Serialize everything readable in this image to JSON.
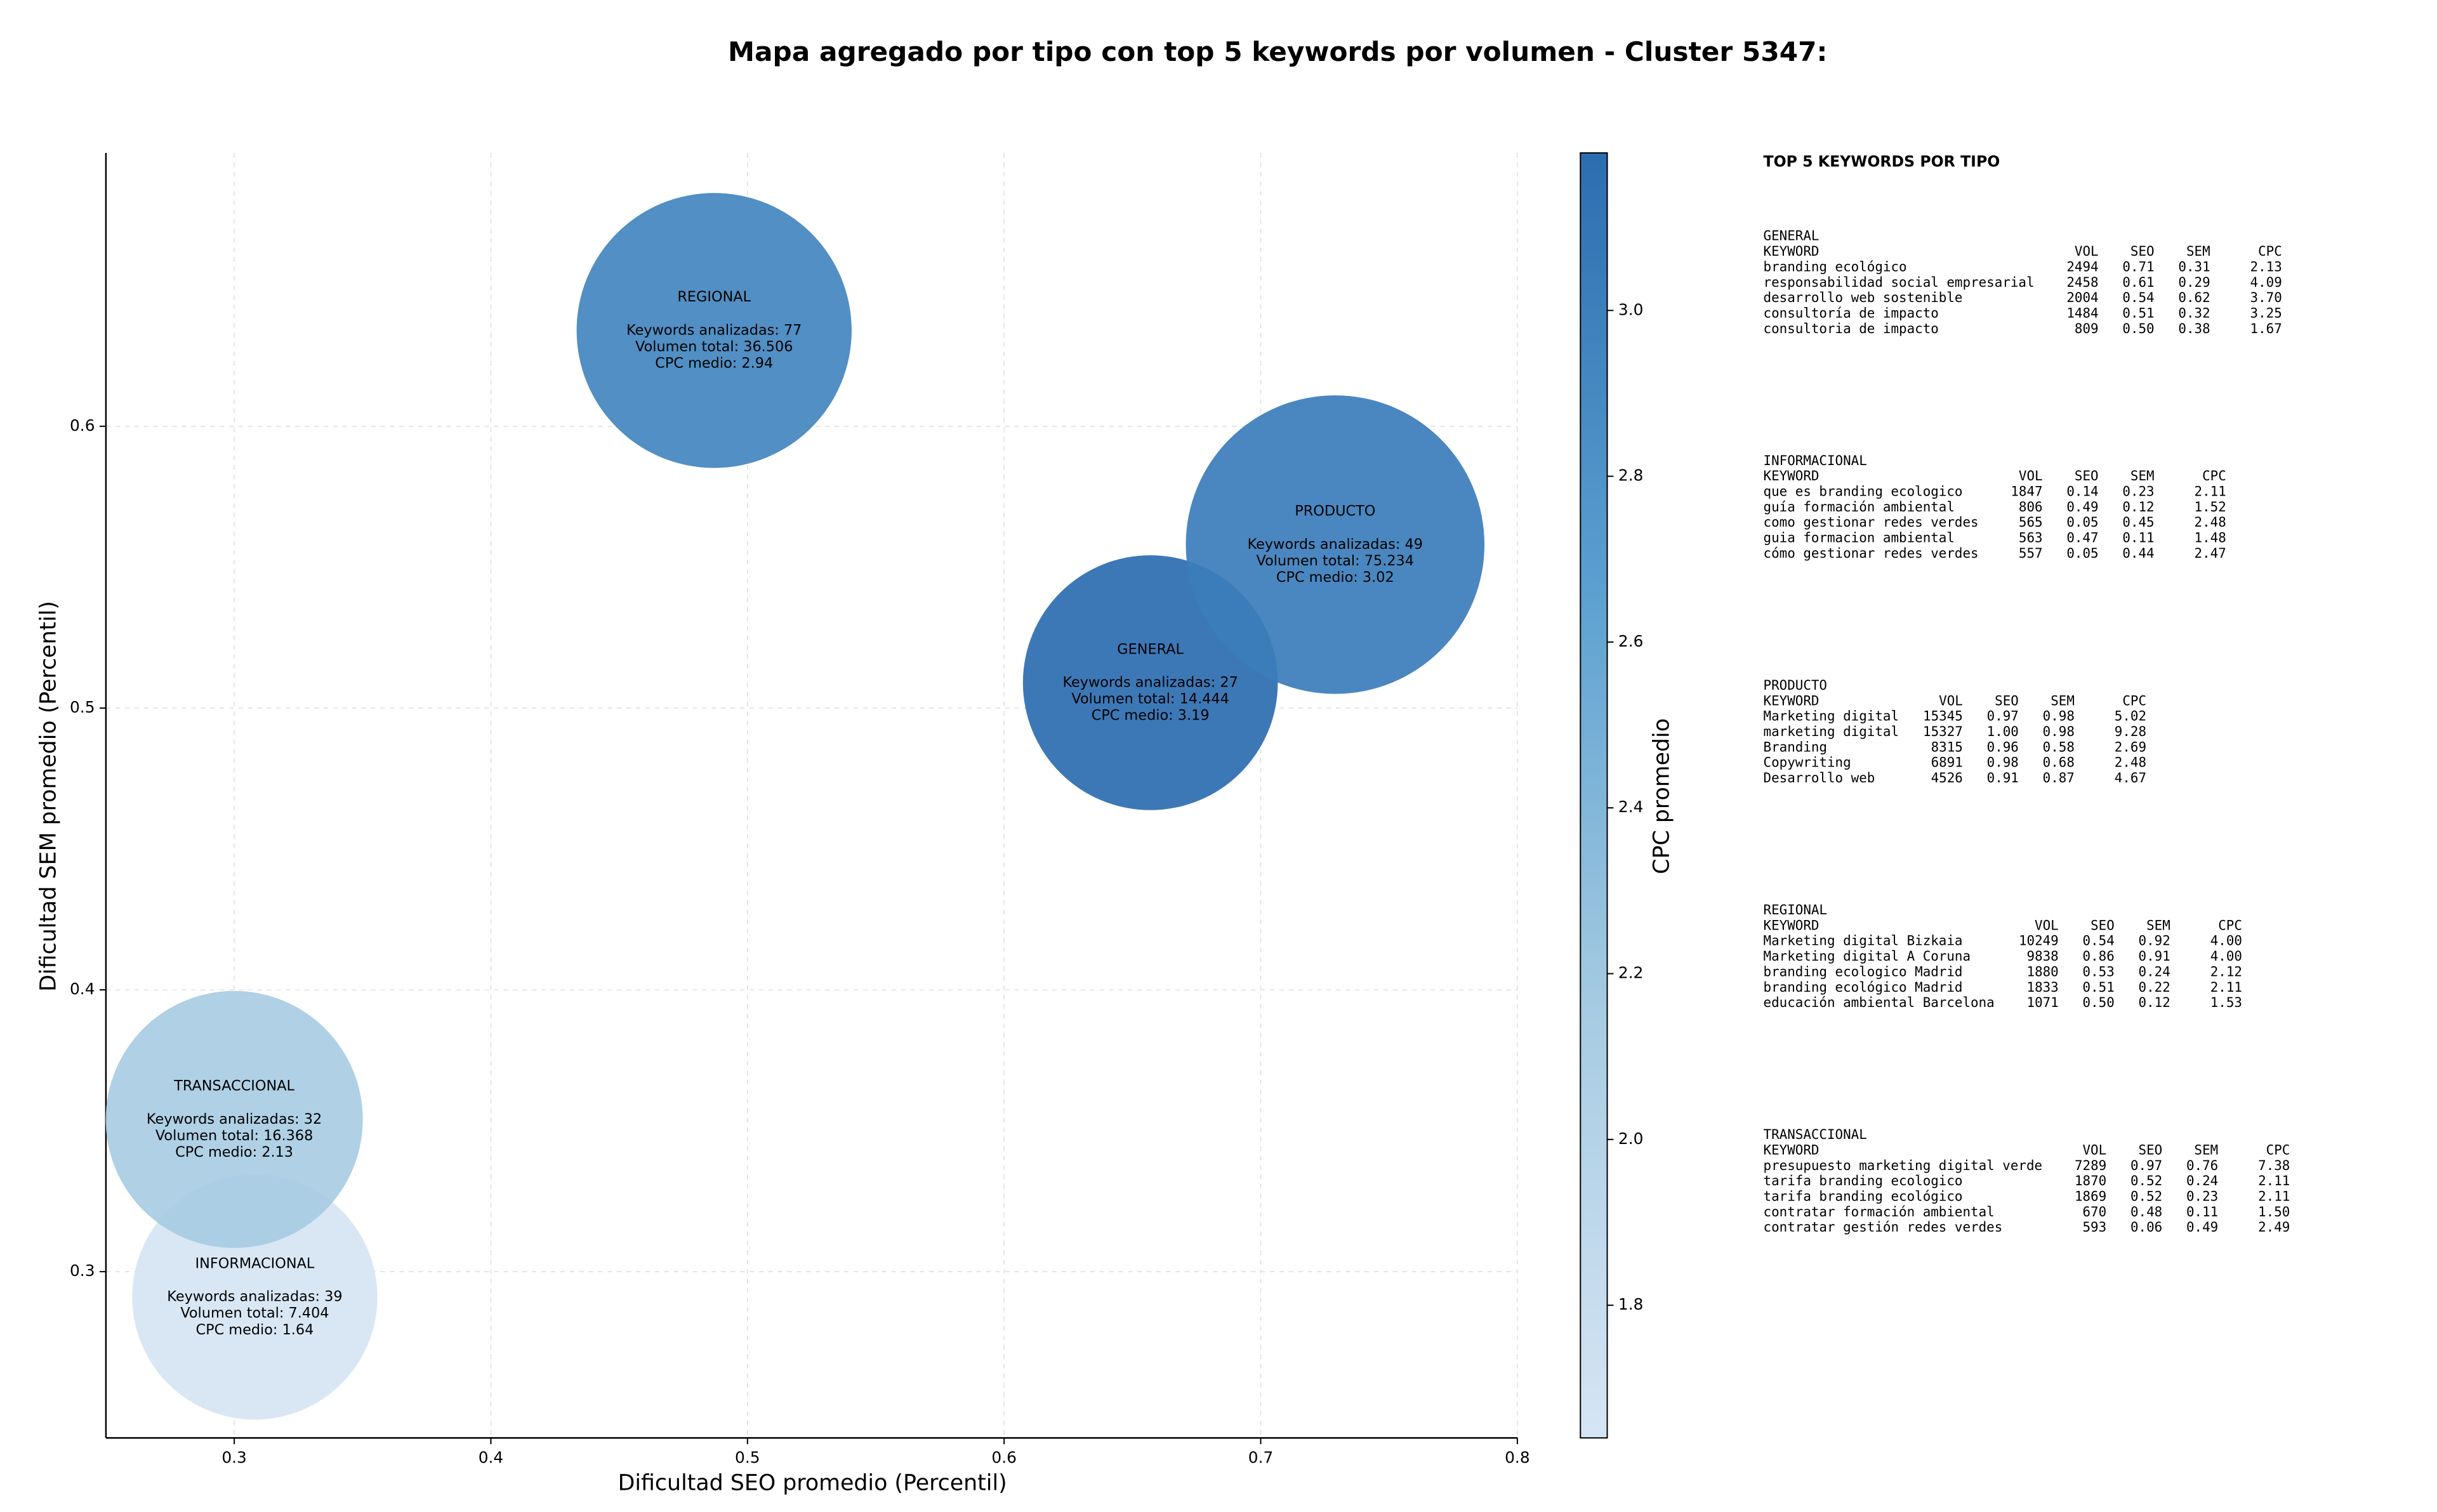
{
  "chart_data": {
    "type": "bubble",
    "title": "Mapa agregado por tipo con top 5 keywords por volumen - Cluster 5347:",
    "xlabel": "Dificultad SEO promedio (Percentil)",
    "ylabel": "Dificultad SEM promedio (Percentil)",
    "colorbar_label": "CPC promedio",
    "xlim": [
      0.25,
      0.8
    ],
    "ylim": [
      0.241,
      0.697
    ],
    "xticks": [
      0.3,
      0.4,
      0.5,
      0.6,
      0.7,
      0.8
    ],
    "yticks": [
      0.3,
      0.4,
      0.5,
      0.6
    ],
    "clim": [
      1.64,
      3.19
    ],
    "cticks": [
      1.8,
      {
        "value": 2,
        "label": "2.0"
      },
      2.2,
      2.4,
      2.6,
      2.8,
      {
        "value": 3,
        "label": "3.0"
      }
    ],
    "colormap": [
      "#d6e5f4",
      "#a6cbe2",
      "#5a9fd0",
      "#2c6db0"
    ],
    "grid": true,
    "points": [
      {
        "name": "GENERAL",
        "x": 0.657,
        "y": 0.509,
        "size": 14444,
        "cpc": 3.19,
        "lines": [
          "Keywords analizadas: 27",
          "Volumen total: 14.444",
          "CPC medio: 3.19"
        ]
      },
      {
        "name": "INFORMACIONAL",
        "x": 0.308,
        "y": 0.291,
        "size": 7404,
        "cpc": 1.64,
        "lines": [
          "Keywords analizadas: 39",
          "Volumen total: 7.404",
          "CPC medio: 1.64"
        ]
      },
      {
        "name": "PRODUCTO",
        "x": 0.729,
        "y": 0.558,
        "size": 75234,
        "cpc": 3.02,
        "lines": [
          "Keywords analizadas: 49",
          "Volumen total: 75.234",
          "CPC medio: 3.02"
        ]
      },
      {
        "name": "REGIONAL",
        "x": 0.487,
        "y": 0.634,
        "size": 36506,
        "cpc": 2.94,
        "lines": [
          "Keywords analizadas: 77",
          "Volumen total: 36.506",
          "CPC medio: 2.94"
        ]
      },
      {
        "name": "TRANSACCIONAL",
        "x": 0.3,
        "y": 0.354,
        "size": 16368,
        "cpc": 2.13,
        "lines": [
          "Keywords analizadas: 32",
          "Volumen total: 16.368",
          "CPC medio: 2.13"
        ]
      }
    ],
    "panel_title": "TOP 5 KEYWORDS POR TIPO",
    "tables": [
      {
        "title": "GENERAL",
        "header": [
          "KEYWORD",
          "VOL",
          "SEO",
          "SEM",
          "CPC"
        ],
        "rows": [
          [
            "branding ecológico",
            "2494",
            "0.71",
            "0.31",
            "2.13"
          ],
          [
            "responsabilidad social empresarial",
            "2458",
            "0.61",
            "0.29",
            "4.09"
          ],
          [
            "desarrollo web sostenible",
            "2004",
            "0.54",
            "0.62",
            "3.70"
          ],
          [
            "consultoría de impacto",
            "1484",
            "0.51",
            "0.32",
            "3.25"
          ],
          [
            "consultoria de impacto",
            "809",
            "0.50",
            "0.38",
            "1.67"
          ]
        ]
      },
      {
        "title": "INFORMACIONAL",
        "header": [
          "KEYWORD",
          "VOL",
          "SEO",
          "SEM",
          "CPC"
        ],
        "rows": [
          [
            "que es branding ecologico",
            "1847",
            "0.14",
            "0.23",
            "2.11"
          ],
          [
            "guía formación ambiental",
            "806",
            "0.49",
            "0.12",
            "1.52"
          ],
          [
            "como gestionar redes verdes",
            "565",
            "0.05",
            "0.45",
            "2.48"
          ],
          [
            "guia formacion ambiental",
            "563",
            "0.47",
            "0.11",
            "1.48"
          ],
          [
            "cómo gestionar redes verdes",
            "557",
            "0.05",
            "0.44",
            "2.47"
          ]
        ]
      },
      {
        "title": "PRODUCTO",
        "header": [
          "KEYWORD",
          "VOL",
          "SEO",
          "SEM",
          "CPC"
        ],
        "rows": [
          [
            "Marketing digital",
            "15345",
            "0.97",
            "0.98",
            "5.02"
          ],
          [
            "marketing digital",
            "15327",
            "1.00",
            "0.98",
            "9.28"
          ],
          [
            "Branding",
            "8315",
            "0.96",
            "0.58",
            "2.69"
          ],
          [
            "Copywriting",
            "6891",
            "0.98",
            "0.68",
            "2.48"
          ],
          [
            "Desarrollo web",
            "4526",
            "0.91",
            "0.87",
            "4.67"
          ]
        ]
      },
      {
        "title": "REGIONAL",
        "header": [
          "KEYWORD",
          "VOL",
          "SEO",
          "SEM",
          "CPC"
        ],
        "rows": [
          [
            "Marketing digital Bizkaia",
            "10249",
            "0.54",
            "0.92",
            "4.00"
          ],
          [
            "Marketing digital A Coruna",
            "9838",
            "0.86",
            "0.91",
            "4.00"
          ],
          [
            "branding ecologico Madrid",
            "1880",
            "0.53",
            "0.24",
            "2.12"
          ],
          [
            "branding ecológico Madrid",
            "1833",
            "0.51",
            "0.22",
            "2.11"
          ],
          [
            "educación ambiental Barcelona",
            "1071",
            "0.50",
            "0.12",
            "1.53"
          ]
        ]
      },
      {
        "title": "TRANSACCIONAL",
        "header": [
          "KEYWORD",
          "VOL",
          "SEO",
          "SEM",
          "CPC"
        ],
        "rows": [
          [
            "presupuesto marketing digital verde",
            "7289",
            "0.97",
            "0.76",
            "7.38"
          ],
          [
            "tarifa branding ecologico",
            "1870",
            "0.52",
            "0.24",
            "2.11"
          ],
          [
            "tarifa branding ecológico",
            "1869",
            "0.52",
            "0.23",
            "2.11"
          ],
          [
            "contratar formación ambiental",
            "670",
            "0.48",
            "0.11",
            "1.50"
          ],
          [
            "contratar gestión redes verdes",
            "593",
            "0.06",
            "0.49",
            "2.49"
          ]
        ]
      }
    ]
  }
}
